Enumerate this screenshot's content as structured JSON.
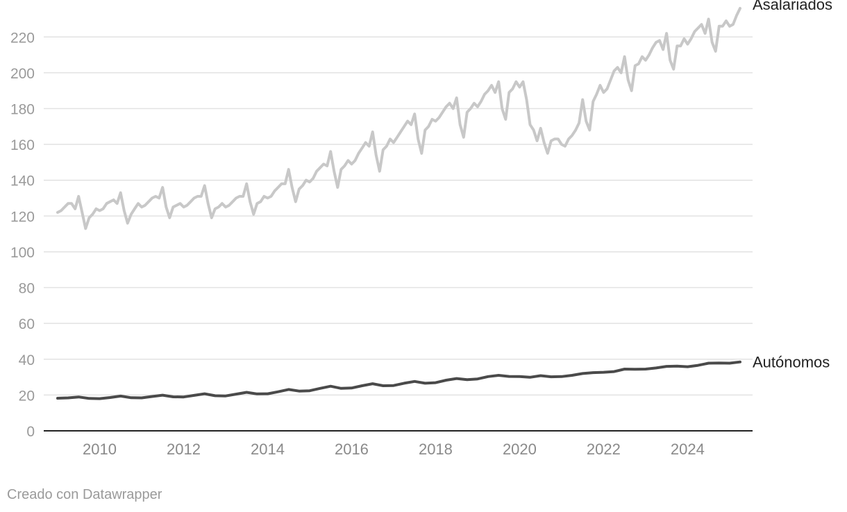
{
  "credit": "Creado con Datawrapper",
  "chart_data": {
    "type": "line",
    "title": "",
    "xlabel": "",
    "ylabel": "",
    "xlim": [
      2009.0,
      2025.25
    ],
    "ylim": [
      0,
      236
    ],
    "y_ticks": [
      0,
      20,
      40,
      60,
      80,
      100,
      120,
      140,
      160,
      180,
      200,
      220
    ],
    "x_ticks": [
      2010,
      2012,
      2014,
      2016,
      2018,
      2020,
      2022,
      2024
    ],
    "grid": true,
    "colors": {
      "Asalariados": "#c8c8c8",
      "Autónomos": "#4a4a4a",
      "grid": "#e2e2e2",
      "axis": "#222222"
    },
    "series": [
      {
        "name": "Asalariados",
        "x": [
          2009.0,
          2009.083,
          2009.167,
          2009.25,
          2009.333,
          2009.417,
          2009.5,
          2009.583,
          2009.667,
          2009.75,
          2009.833,
          2009.917,
          2010.0,
          2010.083,
          2010.167,
          2010.25,
          2010.333,
          2010.417,
          2010.5,
          2010.583,
          2010.667,
          2010.75,
          2010.833,
          2010.917,
          2011.0,
          2011.083,
          2011.167,
          2011.25,
          2011.333,
          2011.417,
          2011.5,
          2011.583,
          2011.667,
          2011.75,
          2011.833,
          2011.917,
          2012.0,
          2012.083,
          2012.167,
          2012.25,
          2012.333,
          2012.417,
          2012.5,
          2012.583,
          2012.667,
          2012.75,
          2012.833,
          2012.917,
          2013.0,
          2013.083,
          2013.167,
          2013.25,
          2013.333,
          2013.417,
          2013.5,
          2013.583,
          2013.667,
          2013.75,
          2013.833,
          2013.917,
          2014.0,
          2014.083,
          2014.167,
          2014.25,
          2014.333,
          2014.417,
          2014.5,
          2014.583,
          2014.667,
          2014.75,
          2014.833,
          2014.917,
          2015.0,
          2015.083,
          2015.167,
          2015.25,
          2015.333,
          2015.417,
          2015.5,
          2015.583,
          2015.667,
          2015.75,
          2015.833,
          2015.917,
          2016.0,
          2016.083,
          2016.167,
          2016.25,
          2016.333,
          2016.417,
          2016.5,
          2016.583,
          2016.667,
          2016.75,
          2016.833,
          2016.917,
          2017.0,
          2017.083,
          2017.167,
          2017.25,
          2017.333,
          2017.417,
          2017.5,
          2017.583,
          2017.667,
          2017.75,
          2017.833,
          2017.917,
          2018.0,
          2018.083,
          2018.167,
          2018.25,
          2018.333,
          2018.417,
          2018.5,
          2018.583,
          2018.667,
          2018.75,
          2018.833,
          2018.917,
          2019.0,
          2019.083,
          2019.167,
          2019.25,
          2019.333,
          2019.417,
          2019.5,
          2019.583,
          2019.667,
          2019.75,
          2019.833,
          2019.917,
          2020.0,
          2020.083,
          2020.167,
          2020.25,
          2020.333,
          2020.417,
          2020.5,
          2020.583,
          2020.667,
          2020.75,
          2020.833,
          2020.917,
          2021.0,
          2021.083,
          2021.167,
          2021.25,
          2021.333,
          2021.417,
          2021.5,
          2021.583,
          2021.667,
          2021.75,
          2021.833,
          2021.917,
          2022.0,
          2022.083,
          2022.167,
          2022.25,
          2022.333,
          2022.417,
          2022.5,
          2022.583,
          2022.667,
          2022.75,
          2022.833,
          2022.917,
          2023.0,
          2023.083,
          2023.167,
          2023.25,
          2023.333,
          2023.417,
          2023.5,
          2023.583,
          2023.667,
          2023.75,
          2023.833,
          2023.917,
          2024.0,
          2024.083,
          2024.167,
          2024.25,
          2024.333,
          2024.417,
          2024.5,
          2024.583,
          2024.667,
          2024.75,
          2024.833,
          2024.917,
          2025.0,
          2025.083,
          2025.167,
          2025.25
        ],
        "values": [
          122,
          123,
          125,
          127,
          127,
          124,
          131,
          122,
          113,
          119,
          121,
          124,
          123,
          124,
          127,
          128,
          129,
          127,
          133,
          123,
          116,
          121,
          124,
          127,
          125,
          126,
          128,
          130,
          131,
          130,
          136,
          125,
          119,
          125,
          126,
          127,
          125,
          126,
          128,
          130,
          131,
          131,
          137,
          127,
          119,
          124,
          125,
          127,
          125,
          126,
          128,
          130,
          131,
          131,
          138,
          128,
          121,
          127,
          128,
          131,
          130,
          131,
          134,
          136,
          138,
          138,
          146,
          136,
          128,
          135,
          137,
          140,
          139,
          141,
          145,
          147,
          149,
          148,
          156,
          145,
          136,
          146,
          148,
          151,
          149,
          151,
          155,
          158,
          161,
          159,
          167,
          154,
          145,
          157,
          159,
          163,
          161,
          164,
          167,
          170,
          173,
          171,
          177,
          163,
          155,
          168,
          170,
          174,
          173,
          175,
          178,
          181,
          183,
          180,
          186,
          171,
          164,
          178,
          180,
          183,
          181,
          184,
          188,
          190,
          193,
          189,
          195,
          180,
          174,
          189,
          191,
          195,
          192,
          195,
          185,
          171,
          168,
          162,
          169,
          161,
          155,
          162,
          163,
          163,
          160,
          159,
          163,
          165,
          168,
          172,
          185,
          173,
          168,
          184,
          188,
          193,
          189,
          191,
          196,
          201,
          203,
          200,
          209,
          196,
          190,
          204,
          205,
          209,
          207,
          210,
          214,
          217,
          218,
          213,
          222,
          207,
          202,
          215,
          215,
          219,
          216,
          219,
          223,
          225,
          227,
          222,
          230,
          217,
          212,
          226,
          226,
          229,
          226,
          227,
          232,
          236
        ]
      },
      {
        "name": "Autónomos",
        "x": [
          2009.0,
          2009.25,
          2009.5,
          2009.75,
          2010.0,
          2010.25,
          2010.5,
          2010.75,
          2011.0,
          2011.25,
          2011.5,
          2011.75,
          2012.0,
          2012.25,
          2012.5,
          2012.75,
          2013.0,
          2013.25,
          2013.5,
          2013.75,
          2014.0,
          2014.25,
          2014.5,
          2014.75,
          2015.0,
          2015.25,
          2015.5,
          2015.75,
          2016.0,
          2016.25,
          2016.5,
          2016.75,
          2017.0,
          2017.25,
          2017.5,
          2017.75,
          2018.0,
          2018.25,
          2018.5,
          2018.75,
          2019.0,
          2019.25,
          2019.5,
          2019.75,
          2020.0,
          2020.25,
          2020.5,
          2020.75,
          2021.0,
          2021.25,
          2021.5,
          2021.75,
          2022.0,
          2022.25,
          2022.5,
          2022.75,
          2023.0,
          2023.25,
          2023.5,
          2023.75,
          2024.0,
          2024.25,
          2024.5,
          2024.75,
          2025.0,
          2025.25
        ],
        "values": [
          18.2,
          18.4,
          18.9,
          18.1,
          18.0,
          18.6,
          19.4,
          18.5,
          18.4,
          19.2,
          19.9,
          19.0,
          18.9,
          19.8,
          20.7,
          19.6,
          19.5,
          20.5,
          21.5,
          20.6,
          20.7,
          21.8,
          23.1,
          22.2,
          22.4,
          23.7,
          24.9,
          23.7,
          23.9,
          25.2,
          26.3,
          25.2,
          25.3,
          26.6,
          27.6,
          26.6,
          26.9,
          28.3,
          29.2,
          28.6,
          29.0,
          30.3,
          31.0,
          30.4,
          30.3,
          29.9,
          30.8,
          30.2,
          30.3,
          31.0,
          32.0,
          32.5,
          32.7,
          33.1,
          34.5,
          34.4,
          34.5,
          35.1,
          36.0,
          36.1,
          35.8,
          36.6,
          37.8,
          37.9,
          37.8,
          38.5
        ]
      }
    ]
  }
}
